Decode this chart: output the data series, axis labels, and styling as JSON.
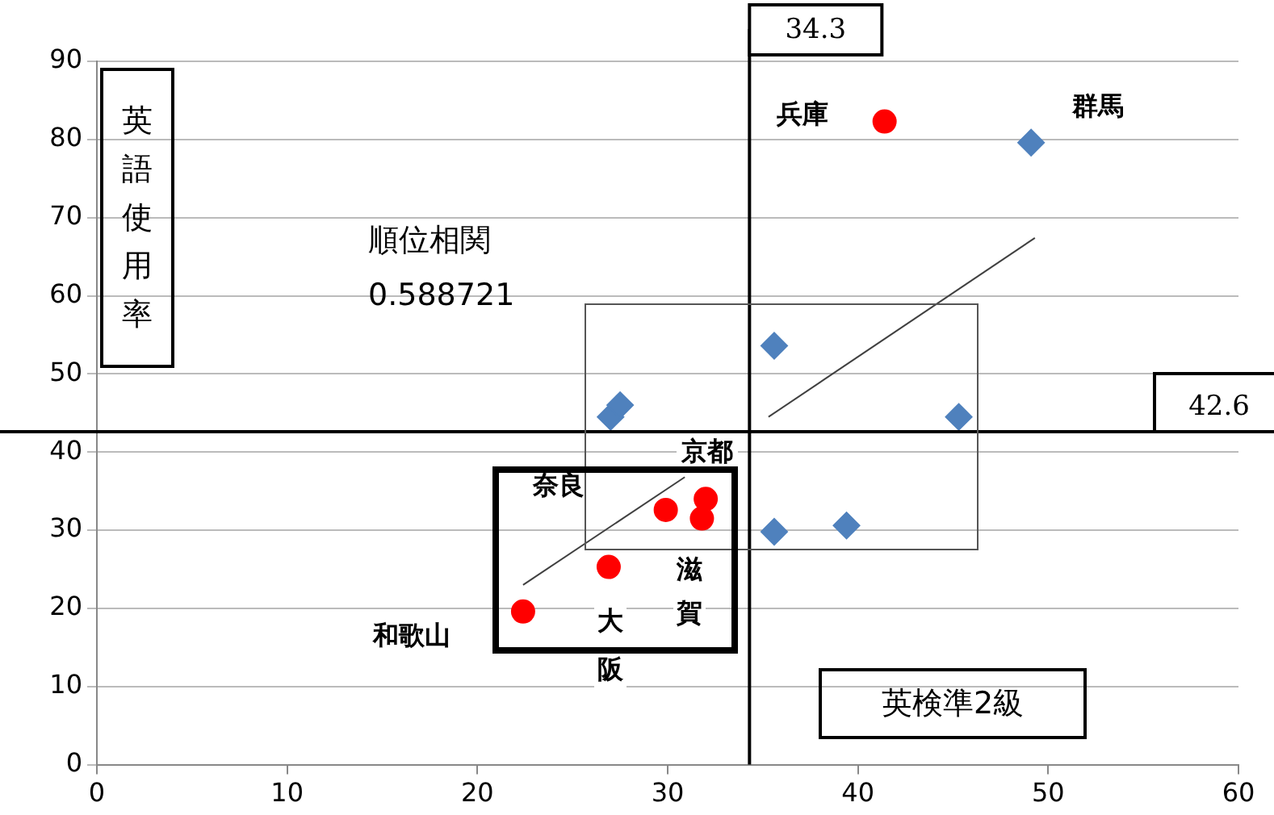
{
  "chart_data": {
    "type": "scatter",
    "xlabel": "英検準2級",
    "ylabel": "英語使用率",
    "xlim": [
      0,
      60
    ],
    "xticks": [
      0,
      10,
      20,
      30,
      40,
      50,
      60
    ],
    "ylim": [
      0,
      90
    ],
    "yticks": [
      0,
      10,
      20,
      30,
      40,
      50,
      60,
      70,
      80,
      90
    ],
    "grid": "y",
    "legend": false,
    "series": [
      {
        "color": "#ff0000",
        "marker": "circle",
        "x": [
          22.4,
          26.9,
          29.9,
          31.8,
          32.0,
          41.4
        ],
        "values": [
          19.6,
          25.3,
          32.6,
          31.5,
          34.0,
          82.3
        ]
      },
      {
        "color": "#4f81bd",
        "marker": "diamond",
        "x": [
          27.0,
          27.5,
          35.6,
          35.6,
          39.4,
          45.3,
          49.1
        ],
        "values": [
          44.5,
          46.0,
          53.6,
          29.8,
          30.6,
          44.5,
          79.6
        ]
      },
      {
        "type": "line",
        "color": "#404040",
        "marker": "none",
        "x": [
          22.4,
          30.9
        ],
        "values": [
          23.0,
          36.8
        ]
      },
      {
        "type": "line",
        "color": "#404040",
        "marker": "none",
        "x": [
          35.3,
          49.3
        ],
        "values": [
          44.5,
          67.4
        ]
      }
    ],
    "ref_lines": [
      {
        "axis": "x",
        "value": 34.3,
        "label": "34.3",
        "color": "#000000"
      },
      {
        "axis": "y",
        "value": 42.6,
        "label": "42.6",
        "color": "#000000"
      }
    ],
    "annotations": [
      "順位相関\n0.588721",
      "兵庫",
      "群馬",
      "京都",
      "奈良",
      "滋賀",
      "大阪",
      "和歌山"
    ]
  }
}
